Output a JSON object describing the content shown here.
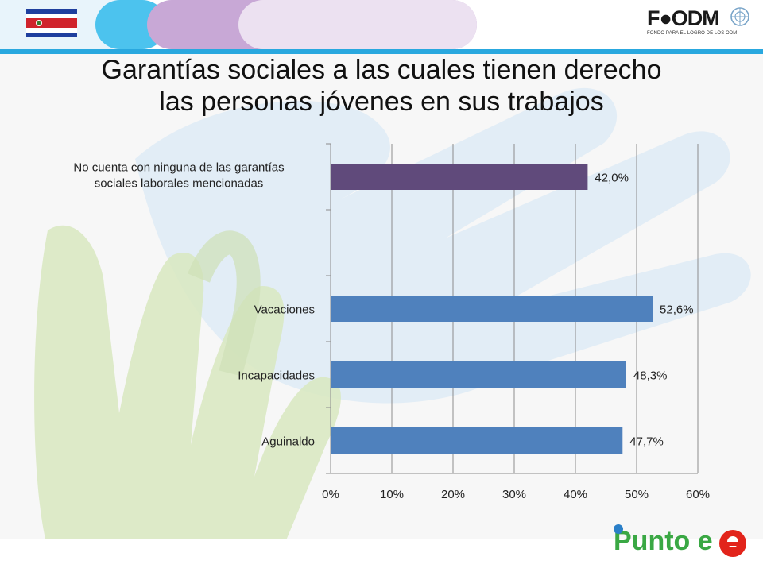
{
  "slide": {
    "title_line1": "Garantías sociales a las cuales tienen derecho",
    "title_line2": "las personas jóvenes en sus trabajos"
  },
  "logos": {
    "fodm_text": "F●ODM",
    "fodm_sub": "FONDO PARA EL LOGRO DE LOS ODM",
    "punto_e_text": "Punto e"
  },
  "colors": {
    "accent_blue": "#29a8df",
    "bar_blue": "#4f81bd",
    "bar_purple": "#604a7b",
    "hand_green": "#cfe3b0",
    "hand_blue": "#d9ecf7"
  },
  "chart_data": {
    "type": "bar",
    "orientation": "horizontal",
    "categories": [
      "No cuenta con ninguna de las garantías sociales laborales mencionadas",
      "",
      "Vacaciones",
      "Incapacidades",
      "Aguinaldo"
    ],
    "values": [
      42.0,
      null,
      52.6,
      48.3,
      47.7
    ],
    "data_labels": [
      "42,0%",
      "",
      "52,6%",
      "48,3%",
      "47,7%"
    ],
    "bar_colors": [
      "#604a7b",
      null,
      "#4f81bd",
      "#4f81bd",
      "#4f81bd"
    ],
    "xlim": [
      0,
      60
    ],
    "x_ticks": [
      0,
      10,
      20,
      30,
      40,
      50,
      60
    ],
    "x_tick_labels": [
      "0%",
      "10%",
      "20%",
      "30%",
      "40%",
      "50%",
      "60%"
    ],
    "category_label_lines": [
      [
        "No cuenta con ninguna de las garantías",
        "sociales laborales mencionadas"
      ],
      [],
      [
        "Vacaciones"
      ],
      [
        "Incapacidades"
      ],
      [
        "Aguinaldo"
      ]
    ],
    "grid": true,
    "legend": "none"
  }
}
